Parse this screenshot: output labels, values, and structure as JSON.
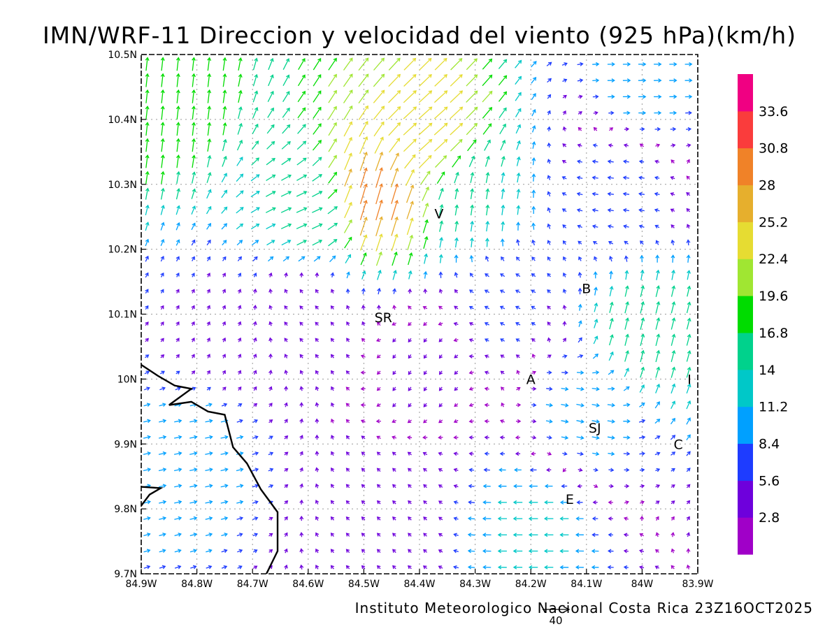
{
  "map": {
    "title": "IMN/WRF-11 Direccion y velocidad del viento (925 hPa)(km/h)",
    "credit": "Instituto Meteorologico Nacional Costa Rica 23Z16OCT2025",
    "extent": {
      "lon_min": -84.9,
      "lon_max": -83.9,
      "lat_min": 9.7,
      "lat_max": 10.5
    },
    "lon_ticks": [
      {
        "value": -84.9,
        "label": "84.9W"
      },
      {
        "value": -84.8,
        "label": "84.8W"
      },
      {
        "value": -84.7,
        "label": "84.7W"
      },
      {
        "value": -84.6,
        "label": "84.6W"
      },
      {
        "value": -84.5,
        "label": "84.5W"
      },
      {
        "value": -84.4,
        "label": "84.4W"
      },
      {
        "value": -84.3,
        "label": "84.3W"
      },
      {
        "value": -84.2,
        "label": "84.2W"
      },
      {
        "value": -84.1,
        "label": "84.1W"
      },
      {
        "value": -84.0,
        "label": "84W"
      },
      {
        "value": -83.9,
        "label": "83.9W"
      }
    ],
    "lat_ticks": [
      {
        "value": 10.5,
        "label": "10.5N"
      },
      {
        "value": 10.4,
        "label": "10.4N"
      },
      {
        "value": 10.3,
        "label": "10.3N"
      },
      {
        "value": 10.2,
        "label": "10.2N"
      },
      {
        "value": 10.1,
        "label": "10.1N"
      },
      {
        "value": 10.0,
        "label": "10N"
      },
      {
        "value": 9.9,
        "label": "9.9N"
      },
      {
        "value": 9.8,
        "label": "9.8N"
      },
      {
        "value": 9.7,
        "label": "9.7N"
      }
    ],
    "cities": [
      {
        "label": "V",
        "lon": -84.365,
        "lat": 10.255
      },
      {
        "label": "B",
        "lon": -84.1,
        "lat": 10.14
      },
      {
        "label": "SR",
        "lon": -84.465,
        "lat": 10.095
      },
      {
        "label": "A",
        "lon": -84.2,
        "lat": 10.0
      },
      {
        "label": "I",
        "lon": -83.915,
        "lat": 10.0
      },
      {
        "label": "SJ",
        "lon": -84.085,
        "lat": 9.925
      },
      {
        "label": "C",
        "lon": -83.935,
        "lat": 9.9
      },
      {
        "label": "E",
        "lon": -84.13,
        "lat": 9.815
      }
    ],
    "reference_vector": {
      "label": "40",
      "speed_kmh": 40
    },
    "legend": {
      "bins": [
        {
          "color": "#a000c8",
          "label": "2.8"
        },
        {
          "color": "#6e00dc",
          "label": "5.6"
        },
        {
          "color": "#1e3cff",
          "label": "8.4"
        },
        {
          "color": "#00a0ff",
          "label": "11.2"
        },
        {
          "color": "#00c8c8",
          "label": "14"
        },
        {
          "color": "#00d28c",
          "label": "16.8"
        },
        {
          "color": "#00dc00",
          "label": "19.6"
        },
        {
          "color": "#a0e632",
          "label": "22.4"
        },
        {
          "color": "#e6dc32",
          "label": "25.2"
        },
        {
          "color": "#e6af2d",
          "label": "28"
        },
        {
          "color": "#f08228",
          "label": "30.8"
        },
        {
          "color": "#fa3c3c",
          "label": "33.6"
        },
        {
          "color": "#f00082",
          "label": ""
        }
      ],
      "top_color": "#f00082"
    },
    "coastline": [
      [
        -84.9,
        10.022
      ],
      [
        -84.87,
        10.005
      ],
      [
        -84.84,
        9.99
      ],
      [
        -84.81,
        9.985
      ],
      [
        -84.85,
        9.96
      ],
      [
        -84.81,
        9.965
      ],
      [
        -84.78,
        9.95
      ],
      [
        -84.75,
        9.945
      ],
      [
        -84.735,
        9.895
      ],
      [
        -84.71,
        9.87
      ],
      [
        -84.685,
        9.83
      ],
      [
        -84.655,
        9.795
      ],
      [
        -84.655,
        9.735
      ],
      [
        -84.675,
        9.7
      ]
    ],
    "coastline2": [
      [
        -84.9,
        9.805
      ],
      [
        -84.885,
        9.822
      ],
      [
        -84.865,
        9.832
      ],
      [
        -84.9,
        9.834
      ]
    ],
    "wind_samples": [
      {
        "lon": -84.48,
        "lat": 10.28,
        "u": 8,
        "v": 28
      },
      {
        "lon": -84.38,
        "lat": 10.38,
        "u": 18,
        "v": 16
      },
      {
        "lon": -84.6,
        "lat": 10.25,
        "u": 14,
        "v": 6
      },
      {
        "lon": -84.85,
        "lat": 10.43,
        "u": 2,
        "v": 18
      },
      {
        "lon": -84.3,
        "lat": 10.27,
        "u": 2,
        "v": 14
      },
      {
        "lon": -84.0,
        "lat": 10.07,
        "u": 4,
        "v": 16
      },
      {
        "lon": -84.2,
        "lat": 9.78,
        "u": -12,
        "v": 0
      },
      {
        "lon": -84.1,
        "lat": 9.95,
        "u": 10,
        "v": -2
      },
      {
        "lon": -84.8,
        "lat": 9.9,
        "u": 10,
        "v": 2
      },
      {
        "lon": -84.4,
        "lat": 10.02,
        "u": -2,
        "v": -3
      },
      {
        "lon": -84.05,
        "lat": 10.3,
        "u": -8,
        "v": 1
      },
      {
        "lon": -84.6,
        "lat": 10.1,
        "u": -4,
        "v": 4
      },
      {
        "lon": -84.0,
        "lat": 10.45,
        "u": 10,
        "v": 0
      },
      {
        "lon": -84.45,
        "lat": 9.8,
        "u": -3,
        "v": 3
      },
      {
        "lon": -84.25,
        "lat": 10.12,
        "u": -6,
        "v": 3
      },
      {
        "lon": -84.75,
        "lat": 10.05,
        "u": 2,
        "v": 4
      }
    ]
  }
}
